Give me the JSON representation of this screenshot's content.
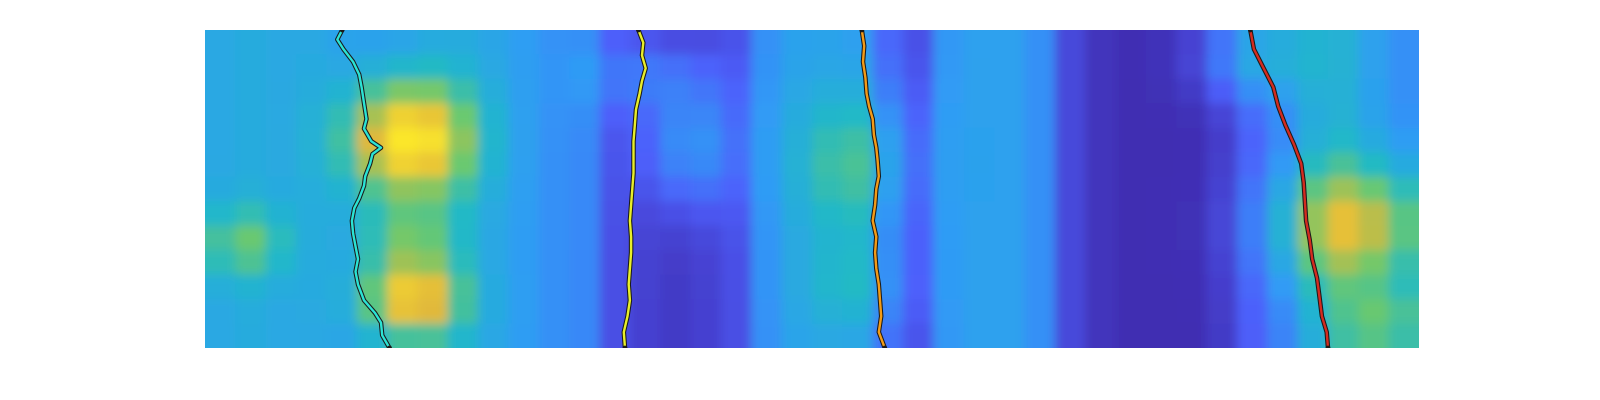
{
  "chart_data": {
    "type": "heatmap",
    "title": "",
    "xlabel": "",
    "ylabel": "",
    "axes_visible": false,
    "colormap": "parula",
    "colormap_stops": [
      "#3e26a8",
      "#4d5ffb",
      "#2f9cf5",
      "#21b9c7",
      "#6cc96d",
      "#e2b93a",
      "#fbe62c"
    ],
    "grid": {
      "columns": 40,
      "rows": 13,
      "column_profile": [
        0.4,
        0.42,
        0.4,
        0.4,
        0.36,
        0.34,
        0.34,
        0.38,
        0.4,
        0.38,
        0.34,
        0.3,
        0.28,
        0.12,
        0.08,
        0.06,
        0.08,
        0.12,
        0.3,
        0.36,
        0.36,
        0.34,
        0.18,
        0.12,
        0.32,
        0.36,
        0.36,
        0.3,
        0.1,
        0.04,
        0.02,
        0.02,
        0.02,
        0.06,
        0.16,
        0.26,
        0.4,
        0.44,
        0.36,
        0.3
      ],
      "hotspots": [
        {
          "col": 6.2,
          "row": 4.0,
          "intensity": 0.7,
          "spread_cols": 2.0,
          "spread_rows": 2.4
        },
        {
          "col": 6.3,
          "row": 10.5,
          "intensity": 0.6,
          "spread_cols": 1.6,
          "spread_rows": 1.6
        },
        {
          "col": 6.2,
          "row": 8.0,
          "intensity": 0.25,
          "spread_cols": 1.5,
          "spread_rows": 1.4
        },
        {
          "col": 14.0,
          "row": 1.4,
          "intensity": 0.15,
          "spread_cols": 2.0,
          "spread_rows": 1.4
        },
        {
          "col": 15.5,
          "row": 4.2,
          "intensity": 0.25,
          "spread_cols": 1.5,
          "spread_rows": 2.5
        },
        {
          "col": 21.0,
          "row": 5.0,
          "intensity": 0.25,
          "spread_cols": 2.0,
          "spread_rows": 3.0
        },
        {
          "col": 21.0,
          "row": 10.0,
          "intensity": 0.15,
          "spread_cols": 1.8,
          "spread_rows": 2.0
        },
        {
          "col": 34.0,
          "row": 0.6,
          "intensity": 0.25,
          "spread_cols": 1.8,
          "spread_rows": 1.8
        },
        {
          "col": 37.5,
          "row": 7.5,
          "intensity": 0.45,
          "spread_cols": 2.8,
          "spread_rows": 2.4
        },
        {
          "col": 38.5,
          "row": 11.5,
          "intensity": 0.3,
          "spread_cols": 1.6,
          "spread_rows": 1.6
        },
        {
          "col": 0.8,
          "row": 8.2,
          "intensity": 0.25,
          "spread_cols": 1.4,
          "spread_rows": 1.4
        }
      ]
    },
    "x_range": [
      0,
      1
    ],
    "y_range": [
      0,
      1
    ],
    "series": [
      {
        "color": "#2be3d4",
        "points": [
          [
            0.113,
            0.0
          ],
          [
            0.109,
            0.03
          ],
          [
            0.114,
            0.06
          ],
          [
            0.122,
            0.1
          ],
          [
            0.127,
            0.14
          ],
          [
            0.129,
            0.18
          ],
          [
            0.131,
            0.23
          ],
          [
            0.133,
            0.28
          ],
          [
            0.131,
            0.31
          ],
          [
            0.137,
            0.35
          ],
          [
            0.145,
            0.37
          ],
          [
            0.138,
            0.39
          ],
          [
            0.136,
            0.42
          ],
          [
            0.132,
            0.46
          ],
          [
            0.131,
            0.49
          ],
          [
            0.127,
            0.53
          ],
          [
            0.123,
            0.56
          ],
          [
            0.121,
            0.6
          ],
          [
            0.122,
            0.64
          ],
          [
            0.124,
            0.68
          ],
          [
            0.126,
            0.72
          ],
          [
            0.124,
            0.76
          ],
          [
            0.126,
            0.8
          ],
          [
            0.131,
            0.85
          ],
          [
            0.14,
            0.89
          ],
          [
            0.145,
            0.92
          ],
          [
            0.146,
            0.96
          ],
          [
            0.152,
            1.0
          ]
        ]
      },
      {
        "color": "#e8ee2a",
        "points": [
          [
            0.357,
            0.0
          ],
          [
            0.361,
            0.04
          ],
          [
            0.36,
            0.08
          ],
          [
            0.363,
            0.12
          ],
          [
            0.36,
            0.16
          ],
          [
            0.358,
            0.2
          ],
          [
            0.355,
            0.25
          ],
          [
            0.354,
            0.3
          ],
          [
            0.353,
            0.35
          ],
          [
            0.353,
            0.4
          ],
          [
            0.353,
            0.45
          ],
          [
            0.352,
            0.5
          ],
          [
            0.351,
            0.55
          ],
          [
            0.35,
            0.6
          ],
          [
            0.351,
            0.65
          ],
          [
            0.351,
            0.7
          ],
          [
            0.35,
            0.75
          ],
          [
            0.349,
            0.8
          ],
          [
            0.35,
            0.85
          ],
          [
            0.348,
            0.9
          ],
          [
            0.345,
            0.95
          ],
          [
            0.346,
            1.0
          ]
        ]
      },
      {
        "color": "#f39b17",
        "points": [
          [
            0.541,
            0.0
          ],
          [
            0.543,
            0.05
          ],
          [
            0.542,
            0.1
          ],
          [
            0.544,
            0.15
          ],
          [
            0.545,
            0.2
          ],
          [
            0.547,
            0.24
          ],
          [
            0.55,
            0.28
          ],
          [
            0.551,
            0.33
          ],
          [
            0.553,
            0.37
          ],
          [
            0.554,
            0.41
          ],
          [
            0.555,
            0.46
          ],
          [
            0.553,
            0.5
          ],
          [
            0.552,
            0.55
          ],
          [
            0.55,
            0.6
          ],
          [
            0.553,
            0.65
          ],
          [
            0.552,
            0.7
          ],
          [
            0.553,
            0.75
          ],
          [
            0.555,
            0.8
          ],
          [
            0.556,
            0.85
          ],
          [
            0.557,
            0.9
          ],
          [
            0.555,
            0.95
          ],
          [
            0.56,
            1.0
          ]
        ]
      },
      {
        "color": "#d42b1f",
        "points": [
          [
            0.861,
            0.0
          ],
          [
            0.864,
            0.06
          ],
          [
            0.872,
            0.12
          ],
          [
            0.88,
            0.18
          ],
          [
            0.884,
            0.24
          ],
          [
            0.89,
            0.3
          ],
          [
            0.897,
            0.36
          ],
          [
            0.903,
            0.42
          ],
          [
            0.905,
            0.48
          ],
          [
            0.906,
            0.54
          ],
          [
            0.907,
            0.6
          ],
          [
            0.91,
            0.66
          ],
          [
            0.912,
            0.72
          ],
          [
            0.916,
            0.78
          ],
          [
            0.918,
            0.84
          ],
          [
            0.92,
            0.9
          ],
          [
            0.924,
            0.95
          ],
          [
            0.925,
            1.0
          ]
        ]
      }
    ]
  }
}
